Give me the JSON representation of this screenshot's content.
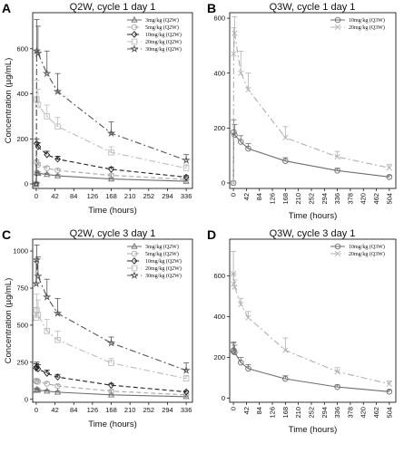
{
  "chart_data": [
    {
      "type": "line",
      "letter": "A",
      "title": "Q2W, cycle 1 day 1",
      "xlabel": "Time (hours)",
      "ylabel": "Concentration (µg/mL)",
      "xticks": [
        0,
        42,
        84,
        126,
        168,
        210,
        252,
        294,
        336
      ],
      "yticks": [
        0,
        200,
        400,
        600
      ],
      "xlim": [
        -8,
        350
      ],
      "ylim": [
        -20,
        760
      ],
      "legend_position": "top-right",
      "series": [
        {
          "name": "3mg/kg (Q2W)",
          "marker": "triangle",
          "color": "#6e6e6e",
          "dash": "solid",
          "x": [
            0,
            1,
            4,
            24,
            48,
            168,
            336
          ],
          "y": [
            0,
            50,
            47,
            42,
            36,
            22,
            12
          ],
          "err": [
            0,
            6,
            6,
            6,
            5,
            4,
            3
          ]
        },
        {
          "name": "5mg/kg (Q2W)",
          "marker": "circle",
          "color": "#a8a8a8",
          "dash": "dash",
          "x": [
            0,
            1,
            4,
            24,
            48,
            168,
            336
          ],
          "y": [
            0,
            95,
            85,
            70,
            60,
            38,
            20
          ],
          "err": [
            0,
            12,
            10,
            9,
            8,
            6,
            4
          ]
        },
        {
          "name": "10mg/kg (Q2W)",
          "marker": "diamond",
          "color": "#222222",
          "dash": "dash",
          "x": [
            0,
            1,
            4,
            24,
            48,
            168,
            336
          ],
          "y": [
            0,
            180,
            165,
            130,
            110,
            65,
            30
          ],
          "err": [
            0,
            20,
            18,
            15,
            13,
            10,
            7
          ]
        },
        {
          "name": "20mg/kg (Q2W)",
          "marker": "square",
          "color": "#bdbdbd",
          "dash": "dashdot",
          "x": [
            0,
            1,
            4,
            24,
            48,
            168,
            336
          ],
          "y": [
            0,
            375,
            350,
            300,
            255,
            140,
            70
          ],
          "err": [
            0,
            85,
            70,
            50,
            40,
            25,
            15
          ]
        },
        {
          "name": "30mg/kg (Q2W)",
          "marker": "star",
          "color": "#555555",
          "dash": "dashdot",
          "x": [
            0,
            1,
            4,
            24,
            48,
            168,
            336
          ],
          "y": [
            0,
            590,
            580,
            490,
            410,
            225,
            105
          ],
          "err": [
            0,
            140,
            120,
            100,
            80,
            50,
            25
          ]
        }
      ]
    },
    {
      "type": "line",
      "letter": "B",
      "title": "Q3W, cycle 1 day 1",
      "xlabel": "Time (hours)",
      "ylabel": "",
      "xticks": [
        0,
        42,
        84,
        126,
        168,
        210,
        252,
        294,
        336,
        378,
        420,
        462,
        504
      ],
      "yticks": [
        0,
        200,
        400,
        600
      ],
      "xlim": [
        -12,
        525
      ],
      "ylim": [
        -20,
        620
      ],
      "legend_position": "top-right",
      "series": [
        {
          "name": "10mg/kg (Q3W)",
          "marker": "circle",
          "color": "#6e6e6e",
          "dash": "solid",
          "x": [
            0,
            1,
            4,
            24,
            48,
            168,
            336,
            504
          ],
          "y": [
            0,
            185,
            175,
            150,
            125,
            80,
            45,
            22
          ],
          "err": [
            0,
            45,
            38,
            22,
            18,
            12,
            8,
            5
          ]
        },
        {
          "name": "20mg/kg (Q3W)",
          "marker": "cross",
          "color": "#b0b0b0",
          "dash": "dashdot",
          "x": [
            0,
            1,
            4,
            24,
            48,
            168,
            336,
            504
          ],
          "y": [
            0,
            470,
            545,
            400,
            340,
            165,
            95,
            55
          ],
          "err": [
            0,
            95,
            60,
            80,
            60,
            40,
            20,
            12
          ]
        }
      ]
    },
    {
      "type": "line",
      "letter": "C",
      "title": "Q2W, cycle 3 day 1",
      "xlabel": "Time (hours)",
      "ylabel": "Concentration (µg/mL)",
      "xticks": [
        0,
        42,
        84,
        126,
        168,
        210,
        252,
        294,
        336
      ],
      "yticks": [
        0,
        250,
        500,
        750,
        1000
      ],
      "xlim": [
        -8,
        350
      ],
      "ylim": [
        -20,
        1080
      ],
      "legend_position": "top-right",
      "series": [
        {
          "name": "3mg/kg (Q2W)",
          "marker": "triangle",
          "color": "#6e6e6e",
          "dash": "solid",
          "x": [
            0,
            1,
            4,
            24,
            48,
            168,
            336
          ],
          "y": [
            60,
            65,
            62,
            55,
            48,
            30,
            18
          ],
          "err": [
            10,
            10,
            9,
            8,
            7,
            5,
            4
          ]
        },
        {
          "name": "5mg/kg (Q2W)",
          "marker": "circle",
          "color": "#a8a8a8",
          "dash": "dash",
          "x": [
            0,
            1,
            4,
            24,
            48,
            168,
            336
          ],
          "y": [
            120,
            125,
            118,
            105,
            90,
            55,
            30
          ],
          "err": [
            15,
            15,
            14,
            12,
            10,
            8,
            6
          ]
        },
        {
          "name": "10mg/kg (Q2W)",
          "marker": "diamond",
          "color": "#222222",
          "dash": "dash",
          "x": [
            0,
            1,
            4,
            24,
            48,
            168,
            336
          ],
          "y": [
            210,
            220,
            205,
            175,
            150,
            95,
            50
          ],
          "err": [
            30,
            30,
            28,
            22,
            18,
            12,
            8
          ]
        },
        {
          "name": "20mg/kg (Q2W)",
          "marker": "square",
          "color": "#bdbdbd",
          "dash": "dashdot",
          "x": [
            0,
            1,
            4,
            24,
            48,
            168,
            336
          ],
          "y": [
            550,
            600,
            570,
            460,
            400,
            245,
            140
          ],
          "err": [
            70,
            110,
            100,
            80,
            60,
            30,
            20
          ]
        },
        {
          "name": "30mg/kg (Q2W)",
          "marker": "star",
          "color": "#555555",
          "dash": "dashdot",
          "x": [
            0,
            1,
            4,
            24,
            48,
            168,
            336
          ],
          "y": [
            780,
            940,
            830,
            690,
            580,
            380,
            195
          ],
          "err": [
            150,
            100,
            130,
            120,
            100,
            40,
            50
          ]
        }
      ]
    },
    {
      "type": "line",
      "letter": "D",
      "title": "Q3W, cycle 3 day 1",
      "xlabel": "Time (hours)",
      "ylabel": "",
      "xticks": [
        0,
        42,
        84,
        126,
        168,
        210,
        252,
        294,
        336,
        378,
        420,
        462,
        504
      ],
      "yticks": [
        0,
        200,
        400,
        600
      ],
      "xlim": [
        -12,
        525
      ],
      "ylim": [
        -20,
        780
      ],
      "legend_position": "top-right",
      "series": [
        {
          "name": "10mg/kg (Q3W)",
          "marker": "circle",
          "color": "#6e6e6e",
          "dash": "solid",
          "x": [
            0,
            1,
            4,
            24,
            48,
            168,
            336,
            504
          ],
          "y": [
            230,
            235,
            225,
            175,
            145,
            95,
            55,
            32
          ],
          "err": [
            40,
            40,
            35,
            25,
            20,
            15,
            10,
            8
          ]
        },
        {
          "name": "20mg/kg (Q3W)",
          "marker": "cross",
          "color": "#b0b0b0",
          "dash": "dashdot",
          "x": [
            0,
            1,
            4,
            24,
            48,
            168,
            336,
            504
          ],
          "y": [
            610,
            560,
            545,
            460,
            395,
            235,
            130,
            70
          ],
          "err": [
            110,
            50,
            35,
            30,
            30,
            60,
            20,
            15
          ]
        }
      ]
    }
  ]
}
